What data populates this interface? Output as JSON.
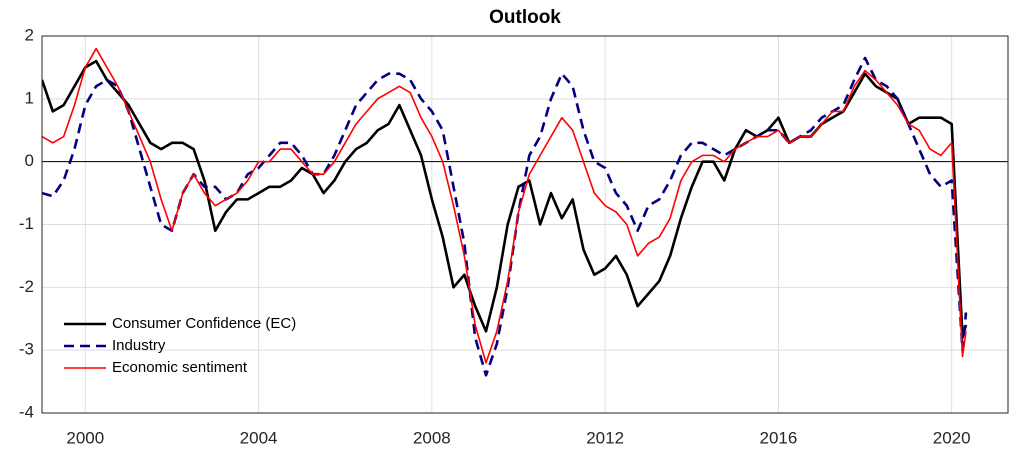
{
  "chart_data": {
    "type": "line",
    "title": "Outlook",
    "x": [
      1999,
      1999.25,
      1999.5,
      1999.75,
      2000,
      2000.25,
      2000.5,
      2000.75,
      2001,
      2001.25,
      2001.5,
      2001.75,
      2002,
      2002.25,
      2002.5,
      2002.75,
      2003,
      2003.25,
      2003.5,
      2003.75,
      2004,
      2004.25,
      2004.5,
      2004.75,
      2005,
      2005.25,
      2005.5,
      2005.75,
      2006,
      2006.25,
      2006.5,
      2006.75,
      2007,
      2007.25,
      2007.5,
      2007.75,
      2008,
      2008.25,
      2008.5,
      2008.75,
      2009,
      2009.25,
      2009.5,
      2009.75,
      2010,
      2010.25,
      2010.5,
      2010.75,
      2011,
      2011.25,
      2011.5,
      2011.75,
      2012,
      2012.25,
      2012.5,
      2012.75,
      2013,
      2013.25,
      2013.5,
      2013.75,
      2014,
      2014.25,
      2014.5,
      2014.75,
      2015,
      2015.25,
      2015.5,
      2015.75,
      2016,
      2016.25,
      2016.5,
      2016.75,
      2017,
      2017.25,
      2017.5,
      2017.75,
      2018,
      2018.25,
      2018.5,
      2018.75,
      2019,
      2019.25,
      2019.5,
      2019.75,
      2020,
      2020.25,
      2020.33
    ],
    "series": [
      {
        "name": "Consumer Confidence (EC)",
        "color": "#000000",
        "line_style": "solid",
        "values": [
          1.3,
          0.8,
          0.9,
          1.2,
          1.5,
          1.6,
          1.3,
          1.1,
          0.9,
          0.6,
          0.3,
          0.2,
          0.3,
          0.3,
          0.2,
          -0.3,
          -1.1,
          -0.8,
          -0.6,
          -0.6,
          -0.5,
          -0.4,
          -0.4,
          -0.3,
          -0.1,
          -0.2,
          -0.5,
          -0.3,
          0.0,
          0.2,
          0.3,
          0.5,
          0.6,
          0.9,
          0.5,
          0.1,
          -0.6,
          -1.2,
          -2.0,
          -1.8,
          -2.3,
          -2.7,
          -2.0,
          -1.0,
          -0.4,
          -0.3,
          -1.0,
          -0.5,
          -0.9,
          -0.6,
          -1.4,
          -1.8,
          -1.7,
          -1.5,
          -1.8,
          -2.3,
          -2.1,
          -1.9,
          -1.5,
          -0.9,
          -0.4,
          0.0,
          0.0,
          -0.3,
          0.2,
          0.5,
          0.4,
          0.5,
          0.7,
          0.3,
          0.4,
          0.4,
          0.6,
          0.7,
          0.8,
          1.1,
          1.4,
          1.2,
          1.1,
          1.0,
          0.6,
          0.7,
          0.7,
          0.7,
          0.6,
          -2.8,
          -2.6
        ]
      },
      {
        "name": "Industry",
        "color": "#000080",
        "line_style": "dashed",
        "values": [
          -0.5,
          -0.55,
          -0.3,
          0.2,
          0.9,
          1.2,
          1.3,
          1.2,
          0.8,
          0.2,
          -0.4,
          -1.0,
          -1.1,
          -0.5,
          -0.2,
          -0.4,
          -0.4,
          -0.6,
          -0.5,
          -0.2,
          -0.1,
          0.1,
          0.3,
          0.3,
          0.1,
          -0.2,
          -0.2,
          0.1,
          0.5,
          0.9,
          1.1,
          1.3,
          1.4,
          1.4,
          1.3,
          1.0,
          0.8,
          0.5,
          -0.4,
          -1.3,
          -2.8,
          -3.4,
          -2.9,
          -2.0,
          -0.8,
          0.1,
          0.4,
          1.0,
          1.4,
          1.2,
          0.5,
          0.0,
          -0.1,
          -0.5,
          -0.7,
          -1.1,
          -0.7,
          -0.6,
          -0.3,
          0.1,
          0.3,
          0.3,
          0.2,
          0.1,
          0.2,
          0.3,
          0.4,
          0.5,
          0.5,
          0.3,
          0.4,
          0.5,
          0.7,
          0.8,
          0.9,
          1.3,
          1.65,
          1.3,
          1.2,
          1.0,
          0.6,
          0.2,
          -0.2,
          -0.4,
          -0.3,
          -3.0,
          -2.4
        ]
      },
      {
        "name": "Economic sentiment",
        "color": "#ff0000",
        "line_style": "solid",
        "values": [
          0.4,
          0.3,
          0.4,
          0.9,
          1.5,
          1.8,
          1.5,
          1.2,
          0.8,
          0.4,
          0.0,
          -0.6,
          -1.1,
          -0.5,
          -0.2,
          -0.5,
          -0.7,
          -0.6,
          -0.5,
          -0.3,
          0.0,
          0.0,
          0.2,
          0.2,
          0.0,
          -0.2,
          -0.2,
          0.0,
          0.3,
          0.6,
          0.8,
          1.0,
          1.1,
          1.2,
          1.1,
          0.7,
          0.4,
          0.0,
          -0.7,
          -1.5,
          -2.6,
          -3.2,
          -2.7,
          -1.9,
          -0.8,
          -0.2,
          0.1,
          0.4,
          0.7,
          0.5,
          0.0,
          -0.5,
          -0.7,
          -0.8,
          -1.0,
          -1.5,
          -1.3,
          -1.2,
          -0.9,
          -0.3,
          0.0,
          0.1,
          0.1,
          0.0,
          0.2,
          0.3,
          0.4,
          0.4,
          0.5,
          0.3,
          0.4,
          0.4,
          0.6,
          0.8,
          0.8,
          1.2,
          1.45,
          1.3,
          1.1,
          0.9,
          0.6,
          0.5,
          0.2,
          0.1,
          0.3,
          -3.1,
          -2.7
        ]
      }
    ],
    "xlim": [
      1999,
      2021.3
    ],
    "xticks": [
      2000,
      2004,
      2008,
      2012,
      2016,
      2020
    ],
    "ylim": [
      -4,
      2
    ],
    "yticks": [
      -4,
      -3,
      -2,
      -1,
      0,
      1,
      2
    ],
    "reference_line": 0,
    "grid": true,
    "legend": "lower left"
  }
}
